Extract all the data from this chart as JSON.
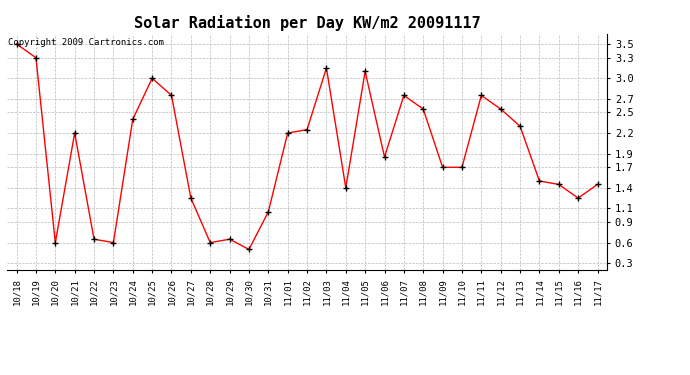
{
  "title": "Solar Radiation per Day KW/m2 20091117",
  "copyright": "Copyright 2009 Cartronics.com",
  "labels": [
    "10/18",
    "10/19",
    "10/20",
    "10/21",
    "10/22",
    "10/23",
    "10/24",
    "10/25",
    "10/26",
    "10/27",
    "10/28",
    "10/29",
    "10/30",
    "10/31",
    "11/01",
    "11/02",
    "11/03",
    "11/04",
    "11/05",
    "11/06",
    "11/07",
    "11/08",
    "11/09",
    "11/10",
    "11/11",
    "11/12",
    "11/13",
    "11/14",
    "11/15",
    "11/16",
    "11/17"
  ],
  "values": [
    3.5,
    3.3,
    0.6,
    2.2,
    0.65,
    0.6,
    2.4,
    3.0,
    2.75,
    1.25,
    0.6,
    0.65,
    0.5,
    1.05,
    2.2,
    2.25,
    3.15,
    1.4,
    3.1,
    1.85,
    2.75,
    2.55,
    1.7,
    1.7,
    2.75,
    2.55,
    2.3,
    1.5,
    1.45,
    1.25,
    1.45
  ],
  "line_color": "#ff0000",
  "marker": "+",
  "marker_color": "#000000",
  "bg_color": "#ffffff",
  "grid_color": "#bbbbbb",
  "ylim": [
    0.2,
    3.65
  ],
  "yticks": [
    0.3,
    0.6,
    0.9,
    1.1,
    1.4,
    1.7,
    1.9,
    2.2,
    2.5,
    2.7,
    3.0,
    3.3,
    3.5
  ],
  "title_fontsize": 11,
  "copyright_fontsize": 6.5,
  "tick_fontsize": 6.5,
  "ytick_fontsize": 7.5
}
